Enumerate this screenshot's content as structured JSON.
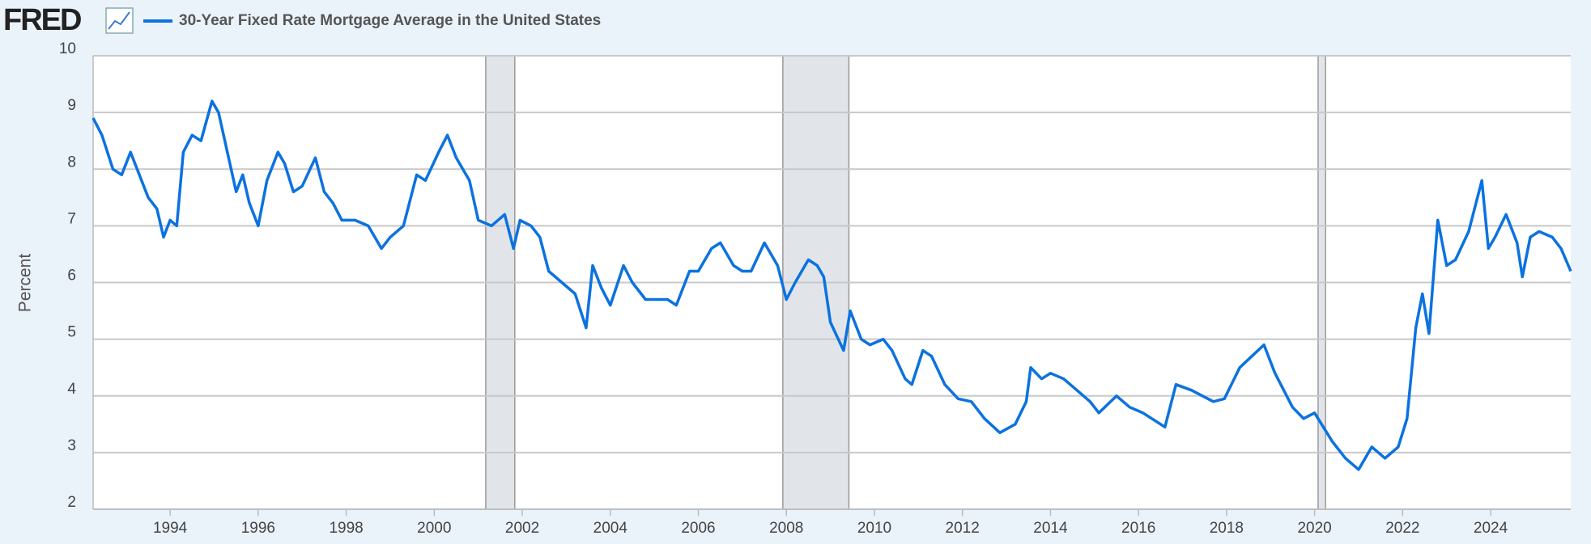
{
  "logo": "FRED",
  "chart_data": {
    "type": "line",
    "title": "30-Year Fixed Rate Mortgage Average in the United States",
    "y_label": "Percent",
    "series": [
      {
        "name": "30-Year Fixed Rate Mortgage Average in the United States",
        "color": "#0b72e0",
        "x": [
          1992.25,
          1992.45,
          1992.7,
          1992.9,
          1993.1,
          1993.3,
          1993.5,
          1993.7,
          1993.85,
          1994.0,
          1994.15,
          1994.3,
          1994.5,
          1994.7,
          1994.95,
          1995.1,
          1995.3,
          1995.5,
          1995.65,
          1995.8,
          1996.0,
          1996.2,
          1996.45,
          1996.6,
          1996.8,
          1997.0,
          1997.3,
          1997.5,
          1997.7,
          1997.9,
          1998.2,
          1998.5,
          1998.8,
          1999.0,
          1999.3,
          1999.6,
          1999.8,
          2000.1,
          2000.3,
          2000.5,
          2000.8,
          2001.0,
          2001.3,
          2001.6,
          2001.8,
          2001.95,
          2002.2,
          2002.4,
          2002.6,
          2002.9,
          2003.2,
          2003.45,
          2003.6,
          2003.8,
          2004.0,
          2004.3,
          2004.5,
          2004.8,
          2005.0,
          2005.3,
          2005.5,
          2005.8,
          2006.0,
          2006.3,
          2006.5,
          2006.8,
          2007.0,
          2007.2,
          2007.5,
          2007.8,
          2008.0,
          2008.2,
          2008.5,
          2008.7,
          2008.85,
          2009.0,
          2009.3,
          2009.45,
          2009.7,
          2009.9,
          2010.2,
          2010.4,
          2010.7,
          2010.85,
          2011.1,
          2011.3,
          2011.6,
          2011.9,
          2012.2,
          2012.5,
          2012.85,
          2013.2,
          2013.45,
          2013.55,
          2013.8,
          2014.0,
          2014.3,
          2014.6,
          2014.9,
          2015.1,
          2015.5,
          2015.8,
          2016.1,
          2016.6,
          2016.85,
          2017.2,
          2017.7,
          2017.95,
          2018.3,
          2018.85,
          2019.1,
          2019.5,
          2019.75,
          2020.0,
          2020.4,
          2020.7,
          2021.0,
          2021.3,
          2021.6,
          2021.9,
          2022.1,
          2022.3,
          2022.45,
          2022.6,
          2022.8,
          2023.0,
          2023.2,
          2023.5,
          2023.8,
          2023.95,
          2024.1,
          2024.35,
          2024.6,
          2024.72,
          2024.9,
          2025.1,
          2025.4,
          2025.6,
          2025.82
        ],
        "values": [
          8.9,
          8.6,
          8.0,
          7.9,
          8.3,
          7.9,
          7.5,
          7.3,
          6.8,
          7.1,
          7.0,
          8.3,
          8.6,
          8.5,
          9.2,
          9.0,
          8.3,
          7.6,
          7.9,
          7.4,
          7.0,
          7.8,
          8.3,
          8.1,
          7.6,
          7.7,
          8.2,
          7.6,
          7.4,
          7.1,
          7.1,
          7.0,
          6.6,
          6.8,
          7.0,
          7.9,
          7.8,
          8.3,
          8.6,
          8.2,
          7.8,
          7.1,
          7.0,
          7.2,
          6.6,
          7.1,
          7.0,
          6.8,
          6.2,
          6.0,
          5.8,
          5.2,
          6.3,
          5.9,
          5.6,
          6.3,
          6.0,
          5.7,
          5.7,
          5.7,
          5.6,
          6.2,
          6.2,
          6.6,
          6.7,
          6.3,
          6.2,
          6.2,
          6.7,
          6.3,
          5.7,
          6.0,
          6.4,
          6.3,
          6.1,
          5.3,
          4.8,
          5.5,
          5.0,
          4.9,
          5.0,
          4.8,
          4.3,
          4.2,
          4.8,
          4.7,
          4.2,
          3.95,
          3.9,
          3.6,
          3.35,
          3.5,
          3.9,
          4.5,
          4.3,
          4.4,
          4.3,
          4.1,
          3.9,
          3.7,
          4.0,
          3.8,
          3.7,
          3.45,
          4.2,
          4.1,
          3.9,
          3.95,
          4.5,
          4.9,
          4.4,
          3.8,
          3.6,
          3.7,
          3.2,
          2.9,
          2.7,
          3.1,
          2.9,
          3.1,
          3.6,
          5.2,
          5.8,
          5.1,
          7.1,
          6.3,
          6.4,
          6.9,
          7.8,
          6.6,
          6.8,
          7.2,
          6.7,
          6.1,
          6.8,
          6.9,
          6.8,
          6.6,
          6.2
        ]
      }
    ],
    "recessions": [
      [
        2001.17,
        2001.83
      ],
      [
        2007.92,
        2009.42
      ],
      [
        2020.08,
        2020.25
      ]
    ],
    "recession_color": "#e1e5ea",
    "xlim": [
      1992.25,
      2025.82
    ],
    "xticks": [
      1994,
      1996,
      1998,
      2000,
      2002,
      2004,
      2006,
      2008,
      2010,
      2012,
      2014,
      2016,
      2018,
      2020,
      2022,
      2024
    ],
    "ylim": [
      2,
      10
    ],
    "yticks": [
      2,
      3,
      4,
      5,
      6,
      7,
      8,
      9,
      10
    ],
    "grid": true
  }
}
